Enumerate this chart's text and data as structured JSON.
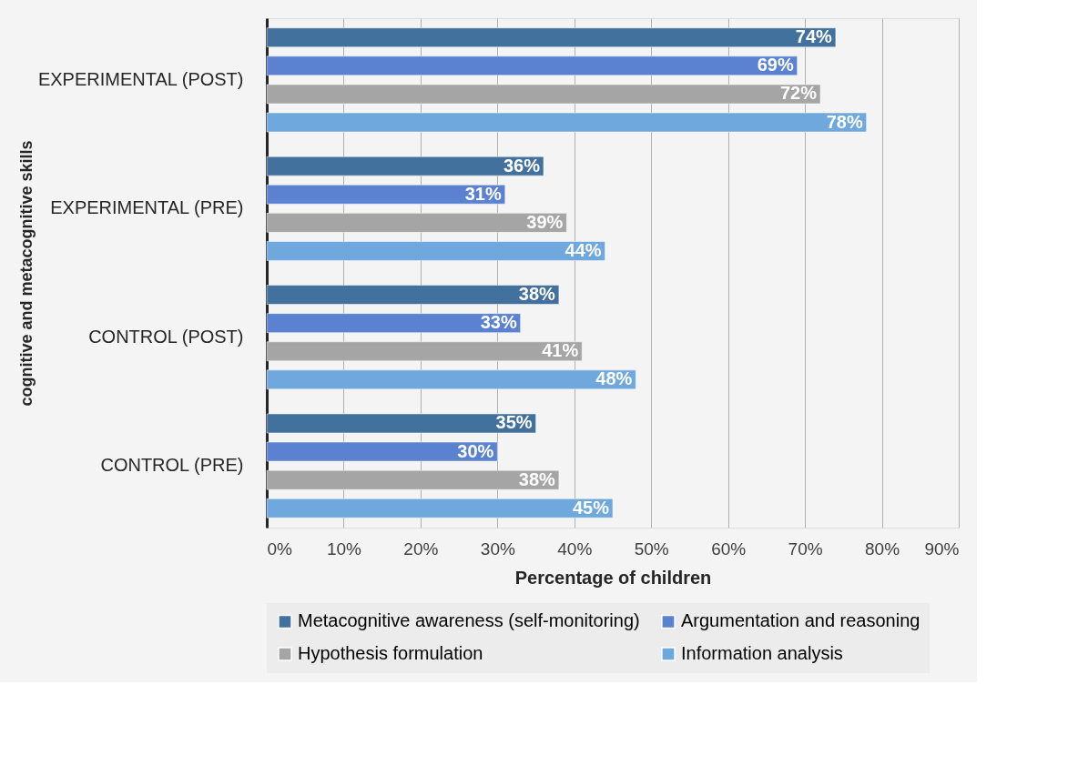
{
  "chart_data": {
    "type": "bar",
    "orientation": "horizontal",
    "xlabel": "Percentage of children",
    "ylabel": "cognitive and metacognitive skills",
    "categories": [
      "EXPERIMENTAL (POST)",
      "EXPERIMENTAL (PRE)",
      "CONTROL (POST)",
      "CONTROL (PRE)"
    ],
    "series": [
      {
        "name": "Metacognitive awareness (self-monitoring)",
        "color": "#41719c",
        "values": [
          74,
          36,
          38,
          35
        ],
        "value_labels": [
          "74%",
          "36%",
          "38%",
          "35%"
        ]
      },
      {
        "name": "Argumentation and reasoning",
        "color": "#5b82d0",
        "values": [
          69,
          31,
          33,
          30
        ],
        "value_labels": [
          "69%",
          "31%",
          "33%",
          "30%"
        ]
      },
      {
        "name": "Hypothesis formulation",
        "color": "#a5a5a5",
        "values": [
          72,
          39,
          41,
          38
        ],
        "value_labels": [
          "72%",
          "39%",
          "41%",
          "38%"
        ]
      },
      {
        "name": "Information analysis",
        "color": "#6fa8dc",
        "values": [
          78,
          44,
          48,
          45
        ],
        "value_labels": [
          "78%",
          "44%",
          "48%",
          "45%"
        ]
      }
    ],
    "xlim": [
      0,
      90
    ],
    "xticks": [
      {
        "value": 0,
        "label": "0%"
      },
      {
        "value": 10,
        "label": "10%"
      },
      {
        "value": 20,
        "label": "20%"
      },
      {
        "value": 30,
        "label": "30%"
      },
      {
        "value": 40,
        "label": "40%"
      },
      {
        "value": 50,
        "label": "50%"
      },
      {
        "value": 60,
        "label": "60%"
      },
      {
        "value": 70,
        "label": "70%"
      },
      {
        "value": 80,
        "label": "80%"
      },
      {
        "value": 90,
        "label": "90%"
      }
    ],
    "grid": "x",
    "legend": "bottom"
  }
}
